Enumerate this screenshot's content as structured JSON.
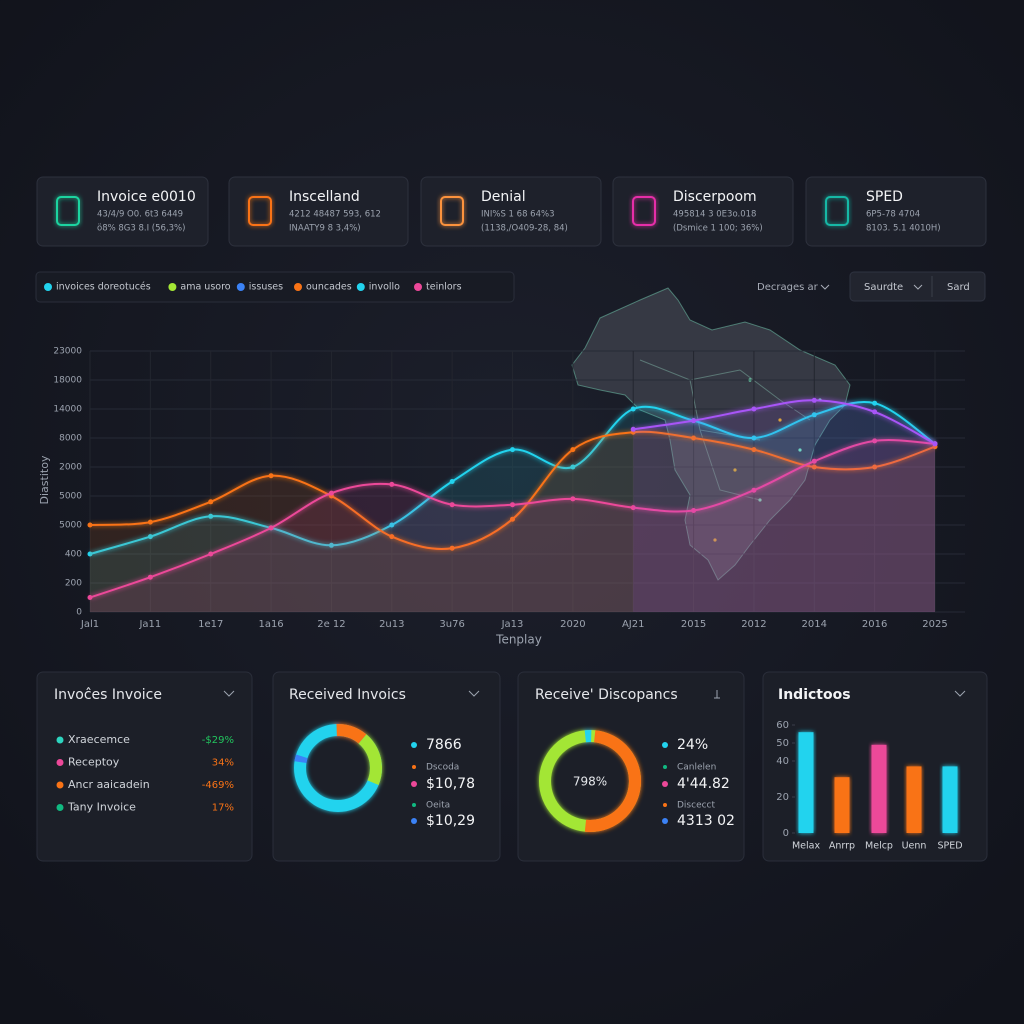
{
  "kpis": [
    {
      "title": "Invoice e0010",
      "line1": "43/4/9 O0. 6t3 6449",
      "line2": "ö8% 8G3 8.I (56,3%)",
      "color": "#1fd4a0"
    },
    {
      "title": "Inscelland",
      "line1": "4212 48487 593, 612",
      "line2": "INAATY9 8 3,4%)",
      "color": "#f97316"
    },
    {
      "title": "Denial",
      "line1": "INI%S 1 68 64%3",
      "line2": "(1138,/O409-28, 84)",
      "color": "#fb923c"
    },
    {
      "title": "Discerpoom",
      "line1": "495814 3 0E3o.018",
      "line2": "(Dsmice 1 100; 36%)",
      "color": "#e62fa8"
    },
    {
      "title": "SPED",
      "line1": "6P5-78 4704",
      "line2": "8103. 5.1 4010H)",
      "color": "#14b8a6"
    }
  ],
  "legend": [
    {
      "label": "invoices doreotucés",
      "color": "#22d3ee"
    },
    {
      "label": "ama usoro",
      "color": "#a3e635"
    },
    {
      "label": "issuses",
      "color": "#3b82f6"
    },
    {
      "label": "ouncades",
      "color": "#f97316"
    },
    {
      "label": "invollo",
      "color": "#22d3ee"
    },
    {
      "label": "teinlors",
      "color": "#ec4899"
    }
  ],
  "controls": {
    "dropdown": "Decrages ar",
    "button1": "Saurdte",
    "button2": "Sard"
  },
  "main_chart": {
    "y_label": "Diastitoy",
    "x_label": "Tenplay",
    "x_labels": [
      "Jal1",
      "Ja11",
      "1e17",
      "1a16",
      "2e 12",
      "2u13",
      "3u76",
      "Ja13",
      "2020",
      "AJ21",
      "2015",
      "2012",
      "2014",
      "2016",
      "2025"
    ],
    "ylim": [
      0,
      9
    ],
    "yticks": [
      0,
      {
        "value": 1,
        "label": "200"
      },
      {
        "value": 2,
        "label": "400"
      },
      {
        "value": 3,
        "label": "5000"
      },
      {
        "value": 4,
        "label": "5000"
      },
      {
        "value": 5,
        "label": "2000"
      },
      {
        "value": 6,
        "label": "8000"
      },
      {
        "value": 7,
        "label": "14000"
      },
      {
        "value": 8,
        "label": "18000"
      },
      {
        "value": 9,
        "label": "23000"
      }
    ],
    "series": [
      {
        "color": "#22d3ee",
        "values": [
          2.0,
          2.6,
          3.3,
          2.9,
          2.3,
          3.0,
          4.5,
          5.6,
          5.0,
          7.0,
          6.6,
          6.0,
          6.8,
          7.2,
          5.8
        ]
      },
      {
        "color": "#f97316",
        "values": [
          3.0,
          3.1,
          3.8,
          4.7,
          4.0,
          2.6,
          2.2,
          3.2,
          5.6,
          6.2,
          6.0,
          5.6,
          5.0,
          5.0,
          5.7
        ]
      },
      {
        "color": "#ec4899",
        "values": [
          0.5,
          1.2,
          2.0,
          2.9,
          4.1,
          4.4,
          3.7,
          3.7,
          3.9,
          3.6,
          3.5,
          4.2,
          5.2,
          5.9,
          5.8
        ]
      },
      {
        "color": "#a855f7",
        "values": [
          null,
          null,
          null,
          null,
          null,
          null,
          null,
          null,
          null,
          6.3,
          6.6,
          7.0,
          7.3,
          6.9,
          5.8
        ]
      }
    ]
  },
  "panels": {
    "invoices": {
      "title": "Invoĉes Invoice",
      "rows": [
        {
          "label": "Xraecemce",
          "value": "-$29%",
          "color": "#2dd4bf",
          "value_color": "#22c55e"
        },
        {
          "label": "Receptoy",
          "value": "34%",
          "color": "#ec4899",
          "value_color": "#f97316"
        },
        {
          "label": "Ancr aaicadein",
          "value": "-469%",
          "color": "#f97316",
          "value_color": "#f97316"
        },
        {
          "label": "Tany Invoice",
          "value": "17%",
          "color": "#10b981",
          "value_color": "#f97316"
        }
      ]
    },
    "received": {
      "title": "Received Invoics",
      "legend": [
        {
          "label": "7866",
          "color": "#22d3ee"
        },
        {
          "label": "Dscoda",
          "color": "#f97316"
        },
        {
          "label": "$10,78",
          "color": "#ec4899"
        },
        {
          "label": "Oeita",
          "color": "#10b981"
        },
        {
          "label": "$10,29",
          "color": "#3b82f6"
        }
      ]
    },
    "discrepancies": {
      "title": "Receive' Discopancs",
      "center": "798%",
      "legend": [
        {
          "label": "24%",
          "color": "#22d3ee"
        },
        {
          "label": "Canlelen",
          "color": "#10b981"
        },
        {
          "label": "4'44.82",
          "color": "#ec4899"
        },
        {
          "label": "Discecct",
          "color": "#f97316"
        },
        {
          "label": "4313 02",
          "color": "#3b82f6"
        }
      ]
    },
    "indicators": {
      "title": "Indictoos",
      "categories": [
        "Melax",
        "Anrrp",
        "Melcp",
        "Uenn",
        "SPED"
      ],
      "values": [
        56,
        31,
        49,
        37,
        37
      ],
      "colors": [
        "#22d3ee",
        "#f97316",
        "#ec4899",
        "#f97316",
        "#22d3ee"
      ],
      "ylim": [
        0,
        60
      ],
      "yticks": [
        0,
        20,
        40,
        50,
        60
      ]
    }
  }
}
